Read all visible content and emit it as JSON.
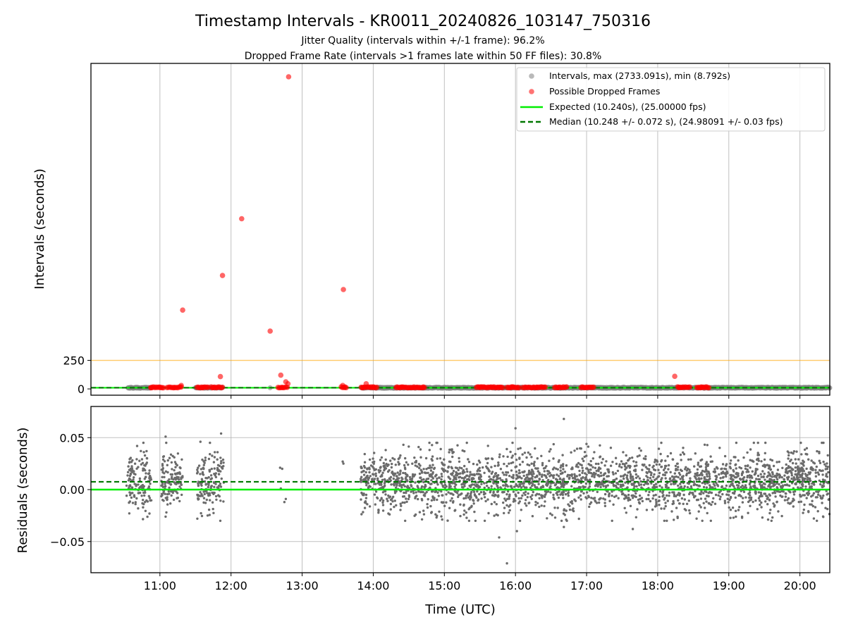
{
  "colors": {
    "background": "#ffffff",
    "intervals": "#808080",
    "dropped": "#ff0000",
    "expected": "#00ee00",
    "median": "#007700",
    "threshold": "#ffa500",
    "grid": "#b0b0b0",
    "residuals": "#6b6b6b"
  },
  "chart_data": [
    {
      "type": "scatter",
      "title": "Timestamp Intervals - KR0011_20240826_103147_750316",
      "subtitle_lines": [
        "Jitter Quality (intervals within +/-1 frame): 96.2%",
        "Dropped Frame Rate (intervals >1 frames late within 50 FF files): 30.8%"
      ],
      "xlabel": "",
      "ylabel": "Intervals (seconds)",
      "x_unit": "hours UTC",
      "xlim": [
        10.03,
        20.42
      ],
      "ylim": [
        -55,
        2850
      ],
      "yticks": [
        0,
        250
      ],
      "yticklabels": [
        "0",
        "250"
      ],
      "grid_x": true,
      "threshold_line_y": 250,
      "legend": {
        "position": "top-right",
        "entries": [
          "Intervals, max (2733.091s), min (8.792s)",
          "Possible Dropped Frames",
          "Expected (10.240s), (25.00000 fps)",
          "Median (10.248 +/- 0.072 s), (24.98091 +/- 0.03 fps)"
        ]
      },
      "expected_y": 10.24,
      "median_y": 10.248,
      "interval_segments": [
        [
          10.55,
          10.88
        ],
        [
          11.5,
          11.88
        ],
        [
          13.83,
          20.42
        ]
      ],
      "series": [
        {
          "name": "Possible Dropped Frames",
          "points": [
            [
              11.32,
              690
            ],
            [
              11.88,
              993
            ],
            [
              12.15,
              1490
            ],
            [
              12.55,
              506
            ],
            [
              12.81,
              2733
            ],
            [
              13.58,
              870
            ],
            [
              11.85,
              108
            ],
            [
              12.7,
              120
            ],
            [
              12.77,
              62
            ],
            [
              12.8,
              45
            ],
            [
              13.57,
              30
            ],
            [
              13.9,
              45
            ],
            [
              18.24,
              110
            ],
            [
              11.3,
              30
            ],
            [
              10.88,
              12
            ],
            [
              11.0,
              12
            ],
            [
              11.2,
              12
            ],
            [
              11.6,
              12
            ],
            [
              11.75,
              12
            ],
            [
              12.72,
              12
            ],
            [
              13.6,
              12
            ],
            [
              13.86,
              12
            ],
            [
              14.0,
              12
            ],
            [
              14.4,
              12
            ],
            [
              14.7,
              12
            ],
            [
              15.5,
              12
            ],
            [
              15.78,
              12
            ],
            [
              15.95,
              12
            ],
            [
              16.1,
              12
            ],
            [
              16.3,
              12
            ],
            [
              16.6,
              12
            ],
            [
              17.0,
              12
            ],
            [
              18.3,
              12
            ],
            [
              18.62,
              12
            ]
          ],
          "clusters": [
            [
              10.87,
              11.05
            ],
            [
              11.1,
              11.3
            ],
            [
              11.52,
              11.68
            ],
            [
              11.72,
              11.88
            ],
            [
              12.66,
              12.79
            ],
            [
              13.55,
              13.62
            ],
            [
              13.83,
              14.05
            ],
            [
              14.32,
              14.72
            ],
            [
              15.45,
              15.82
            ],
            [
              15.88,
              16.05
            ],
            [
              16.12,
              16.42
            ],
            [
              16.55,
              16.72
            ],
            [
              16.92,
              17.1
            ],
            [
              18.28,
              18.45
            ],
            [
              18.55,
              18.72
            ]
          ]
        }
      ]
    },
    {
      "type": "scatter",
      "xlabel": "Time (UTC)",
      "ylabel": "Residuals (seconds)",
      "xlim": [
        10.03,
        20.42
      ],
      "ylim": [
        -0.08,
        0.08
      ],
      "xticks": [
        11,
        12,
        13,
        14,
        15,
        16,
        17,
        18,
        19,
        20
      ],
      "xticklabels": [
        "11:00",
        "12:00",
        "13:00",
        "14:00",
        "15:00",
        "16:00",
        "17:00",
        "18:00",
        "19:00",
        "20:00"
      ],
      "yticks": [
        -0.05,
        0,
        0.05
      ],
      "yticklabels": [
        "−0.05",
        "0.00",
        "0.05"
      ],
      "grid": true,
      "expected_residual": 0.0,
      "median_residual": 0.0075,
      "residual_std": 0.0145,
      "point_count": 3000,
      "time_segments": [
        [
          10.53,
          10.88
        ],
        [
          11.02,
          11.32
        ],
        [
          11.52,
          11.9
        ],
        [
          13.82,
          20.42
        ]
      ],
      "sparse_points": [
        [
          12.69,
          0.021
        ],
        [
          12.72,
          0.02
        ],
        [
          12.75,
          -0.012
        ],
        [
          12.77,
          -0.009
        ],
        [
          12.7,
          0.001
        ],
        [
          13.57,
          0.027
        ],
        [
          13.58,
          0.025
        ],
        [
          11.08,
          0.051
        ],
        [
          11.86,
          0.054
        ],
        [
          11.57,
          0.046
        ],
        [
          16.68,
          0.068
        ],
        [
          15.88,
          -0.071
        ],
        [
          16.02,
          -0.04
        ],
        [
          16.0,
          0.059
        ],
        [
          15.77,
          -0.046
        ],
        [
          16.68,
          -0.036
        ],
        [
          17.65,
          -0.038
        ],
        [
          11.08,
          -0.026
        ]
      ]
    }
  ]
}
